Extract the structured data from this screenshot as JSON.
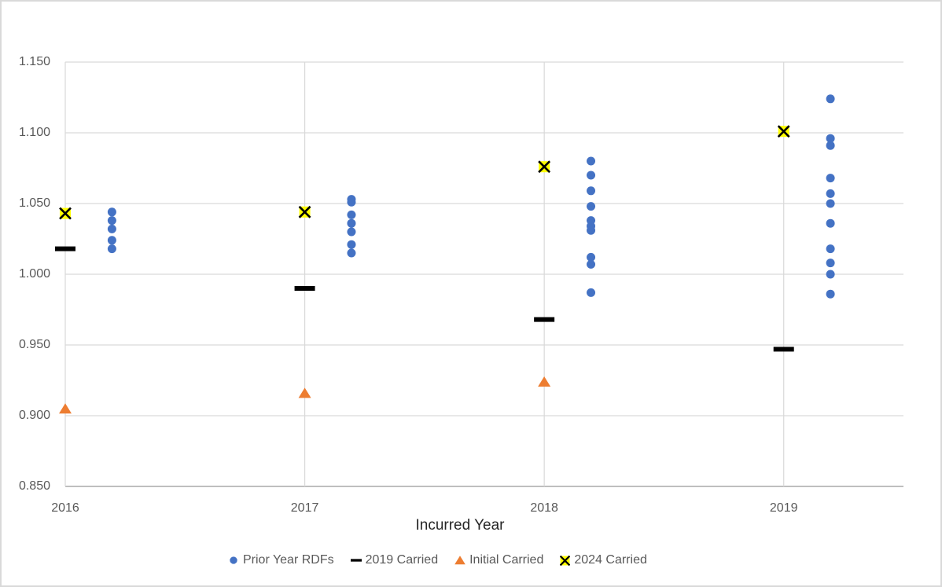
{
  "chart_data": {
    "type": "scatter",
    "title": "",
    "xlabel": "Incurred Year",
    "ylabel": "",
    "x_categories": [
      2016,
      2017,
      2018,
      2019
    ],
    "x_tick_labels": [
      "2016",
      "2017",
      "2018",
      "2019"
    ],
    "y_tick_labels": [
      "1.150",
      "1.100",
      "1.050",
      "1.000",
      "0.950",
      "0.900",
      "0.850"
    ],
    "ylim": [
      0.85,
      1.15
    ],
    "xlim": [
      2016,
      2019.5
    ],
    "grid": true,
    "legend_position": "bottom",
    "series": [
      {
        "name": "Prior Year RDFs",
        "marker": "circle",
        "color": "#4472C4",
        "x_offset_years": 0.195,
        "points": [
          {
            "x": 2016,
            "values": [
              1.044,
              1.038,
              1.032,
              1.024,
              1.018
            ]
          },
          {
            "x": 2017,
            "values": [
              1.053,
              1.051,
              1.042,
              1.036,
              1.03,
              1.021,
              1.015
            ]
          },
          {
            "x": 2018,
            "values": [
              1.08,
              1.07,
              1.059,
              1.048,
              1.038,
              1.034,
              1.031,
              1.012,
              1.007,
              0.987
            ]
          },
          {
            "x": 2019,
            "values": [
              1.124,
              1.096,
              1.091,
              1.068,
              1.057,
              1.05,
              1.036,
              1.018,
              1.008,
              1.0,
              0.986
            ]
          }
        ]
      },
      {
        "name": "2019 Carried",
        "marker": "dash",
        "color": "#000000",
        "x_offset_years": 0,
        "points": [
          {
            "x": 2016,
            "values": [
              1.018
            ]
          },
          {
            "x": 2017,
            "values": [
              0.99
            ]
          },
          {
            "x": 2018,
            "values": [
              0.968
            ]
          },
          {
            "x": 2019,
            "values": [
              0.947
            ]
          }
        ]
      },
      {
        "name": "Initial Carried",
        "marker": "triangle",
        "color": "#ED7D31",
        "x_offset_years": 0,
        "points": [
          {
            "x": 2016,
            "values": [
              0.905
            ]
          },
          {
            "x": 2017,
            "values": [
              0.916
            ]
          },
          {
            "x": 2018,
            "values": [
              0.924
            ]
          }
        ]
      },
      {
        "name": "2024 Carried",
        "marker": "x-square",
        "color": "#FFFF00",
        "x_offset_years": 0,
        "points": [
          {
            "x": 2016,
            "values": [
              1.043
            ]
          },
          {
            "x": 2017,
            "values": [
              1.044
            ]
          },
          {
            "x": 2018,
            "values": [
              1.076
            ]
          },
          {
            "x": 2019,
            "values": [
              1.101
            ]
          }
        ]
      }
    ],
    "styles": {
      "gridline_color": "#D9D9D9",
      "axis_line_color": "#BFBFBF",
      "tick_label_color": "#595959",
      "axis_title_color": "#262626",
      "legend_text_color": "#595959",
      "background": "#FFFFFF",
      "border_color": "#D9D9D9"
    }
  }
}
